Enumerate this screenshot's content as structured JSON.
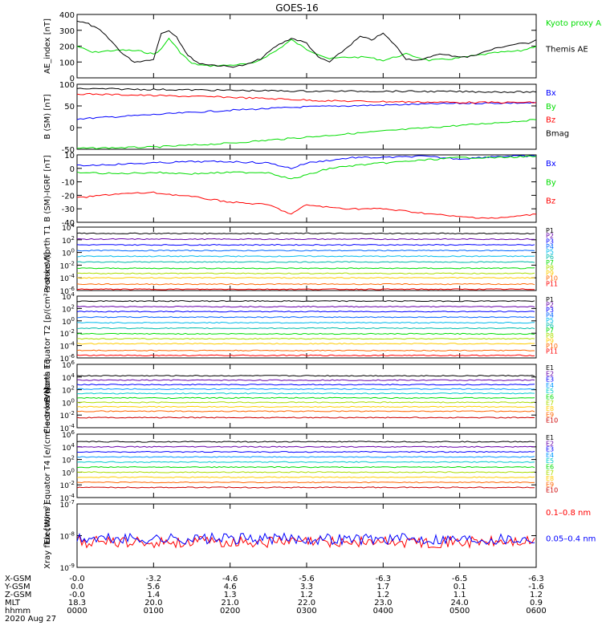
{
  "title": "GOES-16",
  "date_label": "2020 Aug 27",
  "x_axis": {
    "ticks": [
      "0000",
      "0100",
      "0200",
      "0300",
      "0400",
      "0500",
      "0600"
    ],
    "rows": [
      {
        "label": "X-GSM",
        "values": [
          "-0.0",
          "-3.2",
          "-4.6",
          "-5.6",
          "-6.3",
          "-6.5",
          "-6.3"
        ]
      },
      {
        "label": "Y-GSM",
        "values": [
          "0.0",
          "5.6",
          "4.6",
          "3.3",
          "1.7",
          "0.1",
          "-1.6"
        ]
      },
      {
        "label": "Z-GSM",
        "values": [
          "-0.0",
          "1.4",
          "1.3",
          "1.2",
          "1.2",
          "1.1",
          "1.2"
        ]
      },
      {
        "label": "MLT",
        "values": [
          "18.3",
          "20.0",
          "21.0",
          "22.0",
          "23.0",
          "24.0",
          "0.9"
        ]
      },
      {
        "label": "hhmm",
        "values": [
          "0000",
          "0100",
          "0200",
          "0300",
          "0400",
          "0500",
          "0600"
        ]
      }
    ]
  },
  "chart_data": [
    {
      "type": "line",
      "ylabel": "AE_index [nT]",
      "ylim": [
        0,
        400
      ],
      "yticks": [
        "400",
        "300",
        "200",
        "100",
        "0"
      ],
      "x_hours": [
        0,
        6
      ],
      "series": [
        {
          "name": "Kyoto proxy AE",
          "color": "#00dd00",
          "x": [
            0,
            0.2,
            0.4,
            0.6,
            0.8,
            1.0,
            1.1,
            1.2,
            1.35,
            1.5,
            1.7,
            2.0,
            2.3,
            2.6,
            2.8,
            3.0,
            3.3,
            3.5,
            3.8,
            4.0,
            4.3,
            4.6,
            4.9,
            5.2,
            5.5,
            5.8,
            6.0
          ],
          "y": [
            200,
            160,
            170,
            175,
            170,
            150,
            180,
            250,
            160,
            90,
            75,
            80,
            90,
            170,
            240,
            180,
            120,
            130,
            130,
            110,
            150,
            110,
            120,
            140,
            160,
            170,
            200
          ]
        },
        {
          "name": "Themis AE",
          "color": "#000000",
          "x": [
            0,
            0.15,
            0.3,
            0.45,
            0.6,
            0.75,
            0.9,
            1.0,
            1.1,
            1.2,
            1.3,
            1.45,
            1.6,
            1.8,
            2.0,
            2.2,
            2.4,
            2.6,
            2.8,
            3.0,
            3.15,
            3.3,
            3.5,
            3.7,
            3.85,
            4.0,
            4.15,
            4.3,
            4.5,
            4.7,
            4.9,
            5.1,
            5.3,
            5.5,
            5.7,
            5.9,
            6.0
          ],
          "y": [
            360,
            340,
            300,
            230,
            150,
            100,
            110,
            120,
            280,
            300,
            260,
            140,
            90,
            80,
            70,
            80,
            120,
            200,
            250,
            220,
            130,
            100,
            180,
            260,
            240,
            280,
            210,
            120,
            110,
            150,
            140,
            130,
            160,
            190,
            210,
            220,
            240
          ]
        }
      ]
    },
    {
      "type": "line",
      "ylabel": "B (SM) [nT]",
      "ylim": [
        -50,
        100
      ],
      "yticks": [
        "100",
        "50",
        "0",
        "-50"
      ],
      "x_hours": [
        0,
        6
      ],
      "series": [
        {
          "name": "Bx",
          "color": "#0000ff",
          "x": [
            0,
            1,
            2,
            3,
            4,
            5,
            6
          ],
          "y": [
            20,
            30,
            40,
            48,
            52,
            56,
            57
          ]
        },
        {
          "name": "By",
          "color": "#00dd00",
          "x": [
            0,
            1,
            2,
            3,
            4,
            5,
            6
          ],
          "y": [
            -48,
            -45,
            -36,
            -22,
            -8,
            5,
            18
          ]
        },
        {
          "name": "Bz",
          "color": "#ff0000",
          "x": [
            0,
            1,
            2,
            2.8,
            3.2,
            4,
            5,
            6
          ],
          "y": [
            78,
            74,
            70,
            65,
            62,
            60,
            58,
            58
          ]
        },
        {
          "name": "Bmag",
          "color": "#000000",
          "x": [
            0,
            1,
            2,
            3,
            4,
            5,
            6
          ],
          "y": [
            90,
            88,
            86,
            84,
            84,
            83,
            82
          ]
        }
      ]
    },
    {
      "type": "line",
      "ylabel": "B (SM)-IGRF [nT]",
      "ylim": [
        -40,
        10
      ],
      "yticks": [
        "10",
        "0",
        "-10",
        "-20",
        "-30",
        "-40"
      ],
      "x_hours": [
        0,
        6
      ],
      "series": [
        {
          "name": "Bx",
          "color": "#0000ff",
          "x": [
            0,
            0.5,
            1,
            1.5,
            2,
            2.5,
            2.8,
            3.0,
            3.3,
            3.6,
            4,
            4.5,
            5,
            5.5,
            6
          ],
          "y": [
            2,
            3,
            4,
            5,
            5,
            4,
            0,
            4,
            6,
            8,
            8,
            9,
            7,
            9,
            9
          ]
        },
        {
          "name": "By",
          "color": "#00dd00",
          "x": [
            0,
            0.5,
            1,
            1.5,
            2,
            2.5,
            2.8,
            3.0,
            3.3,
            3.6,
            4,
            4.5,
            5,
            5.5,
            6
          ],
          "y": [
            -3,
            -4,
            -3,
            -4,
            -3,
            -3,
            -8,
            -5,
            0,
            2,
            4,
            6,
            8,
            8,
            9
          ]
        },
        {
          "name": "Bz",
          "color": "#ff0000",
          "x": [
            0,
            0.5,
            1,
            1.5,
            2,
            2.5,
            2.8,
            3.0,
            3.3,
            3.6,
            4,
            4.5,
            5,
            5.5,
            6
          ],
          "y": [
            -22,
            -19,
            -18,
            -21,
            -25,
            -27,
            -34,
            -27,
            -29,
            -30,
            -30,
            -33,
            -36,
            -37,
            -34
          ]
        }
      ]
    },
    {
      "type": "line",
      "log": true,
      "ylabel": "Protons North T1",
      "exp_range": [
        -6,
        4
      ],
      "yticks_exp": [
        4,
        2,
        0,
        -2,
        -4,
        -6
      ],
      "x_hours": [
        0,
        6
      ],
      "series": [
        {
          "name": "P1",
          "color": "#000000",
          "level": 3.0
        },
        {
          "name": "P2",
          "color": "#6600aa",
          "level": 2.1
        },
        {
          "name": "P3",
          "color": "#0000ff",
          "level": 1.2
        },
        {
          "name": "P4",
          "color": "#0066ff",
          "level": 0.3
        },
        {
          "name": "P5",
          "color": "#00bbee",
          "level": -0.6
        },
        {
          "name": "P6",
          "color": "#00bbaa",
          "level": -1.5
        },
        {
          "name": "P7",
          "color": "#00dd00",
          "level": -2.5
        },
        {
          "name": "P8",
          "color": "#aadd00",
          "level": -3.3
        },
        {
          "name": "P9",
          "color": "#ffcc00",
          "level": -4.0
        },
        {
          "name": "P10",
          "color": "#ff6600",
          "level": -5.0
        },
        {
          "name": "P11",
          "color": "#ff0000",
          "level": -5.8
        }
      ]
    },
    {
      "type": "line",
      "log": true,
      "ylabel": "Protons Equator T2 [p/(cm²-s-sr-keV)]",
      "exp_range": [
        -6,
        4
      ],
      "yticks_exp": [
        4,
        2,
        0,
        -2,
        -4,
        -6
      ],
      "x_hours": [
        0,
        6
      ],
      "series": [
        {
          "name": "P1",
          "color": "#000000",
          "level": 3.2
        },
        {
          "name": "P2",
          "color": "#6600aa",
          "level": 2.3
        },
        {
          "name": "P3",
          "color": "#0000ff",
          "level": 1.5
        },
        {
          "name": "P4",
          "color": "#0066ff",
          "level": 0.6
        },
        {
          "name": "P5",
          "color": "#00bbee",
          "level": -0.3
        },
        {
          "name": "P6",
          "color": "#00bbaa",
          "level": -1.2
        },
        {
          "name": "P7",
          "color": "#00dd00",
          "level": -2.1
        },
        {
          "name": "P8",
          "color": "#aadd00",
          "level": -2.9
        },
        {
          "name": "P9",
          "color": "#ffcc00",
          "level": -3.7
        },
        {
          "name": "P10",
          "color": "#ff6600",
          "level": -4.8
        },
        {
          "name": "P11",
          "color": "#ff0000",
          "level": -5.6
        }
      ]
    },
    {
      "type": "line",
      "log": true,
      "ylabel": "Electrons North T3",
      "exp_range": [
        -4,
        6
      ],
      "yticks_exp": [
        6,
        4,
        2,
        0,
        -2,
        -4
      ],
      "x_hours": [
        0,
        6
      ],
      "series": [
        {
          "name": "E1",
          "color": "#000000",
          "level": 4.2
        },
        {
          "name": "E2",
          "color": "#6600aa",
          "level": 3.5
        },
        {
          "name": "E3",
          "color": "#0000ff",
          "level": 2.8
        },
        {
          "name": "E4",
          "color": "#0099ff",
          "level": 2.1
        },
        {
          "name": "E5",
          "color": "#00cccc",
          "level": 1.4
        },
        {
          "name": "E6",
          "color": "#00dd00",
          "level": 0.7
        },
        {
          "name": "E7",
          "color": "#aadd00",
          "level": 0.0
        },
        {
          "name": "E8",
          "color": "#ffcc00",
          "level": -0.7
        },
        {
          "name": "E9",
          "color": "#ff6600",
          "level": -1.4
        },
        {
          "name": "E10",
          "color": "#cc0000",
          "level": -2.4
        }
      ]
    },
    {
      "type": "line",
      "log": true,
      "ylabel": "Electrons Equator T4 [e/(cm²-s-sr-keV)]",
      "exp_range": [
        -4,
        6
      ],
      "yticks_exp": [
        6,
        4,
        2,
        0,
        -2,
        -4
      ],
      "x_hours": [
        0,
        6
      ],
      "series": [
        {
          "name": "E1",
          "color": "#000000",
          "level": 4.8
        },
        {
          "name": "E2",
          "color": "#6600aa",
          "level": 4.0
        },
        {
          "name": "E3",
          "color": "#0000ff",
          "level": 3.2
        },
        {
          "name": "E4",
          "color": "#0099ff",
          "level": 2.4
        },
        {
          "name": "E5",
          "color": "#00cccc",
          "level": 1.6
        },
        {
          "name": "E6",
          "color": "#00dd00",
          "level": 0.8
        },
        {
          "name": "E7",
          "color": "#aadd00",
          "level": 0.0
        },
        {
          "name": "E8",
          "color": "#ffcc00",
          "level": -0.8
        },
        {
          "name": "E9",
          "color": "#ff6600",
          "level": -1.6
        },
        {
          "name": "E10",
          "color": "#cc0000",
          "level": -2.4
        }
      ]
    },
    {
      "type": "line",
      "log": true,
      "ylabel": "Xray flux [W/m²]",
      "exp_range": [
        -9,
        -7
      ],
      "yticks_exp": [
        -7,
        -8,
        -9
      ],
      "x_hours": [
        0,
        6
      ],
      "series": [
        {
          "name": "0.1–0.8 nm",
          "color": "#ff0000",
          "level": -8.2
        },
        {
          "name": "0.05–0.4 nm",
          "color": "#0000ff",
          "level": -8.1
        }
      ]
    }
  ]
}
